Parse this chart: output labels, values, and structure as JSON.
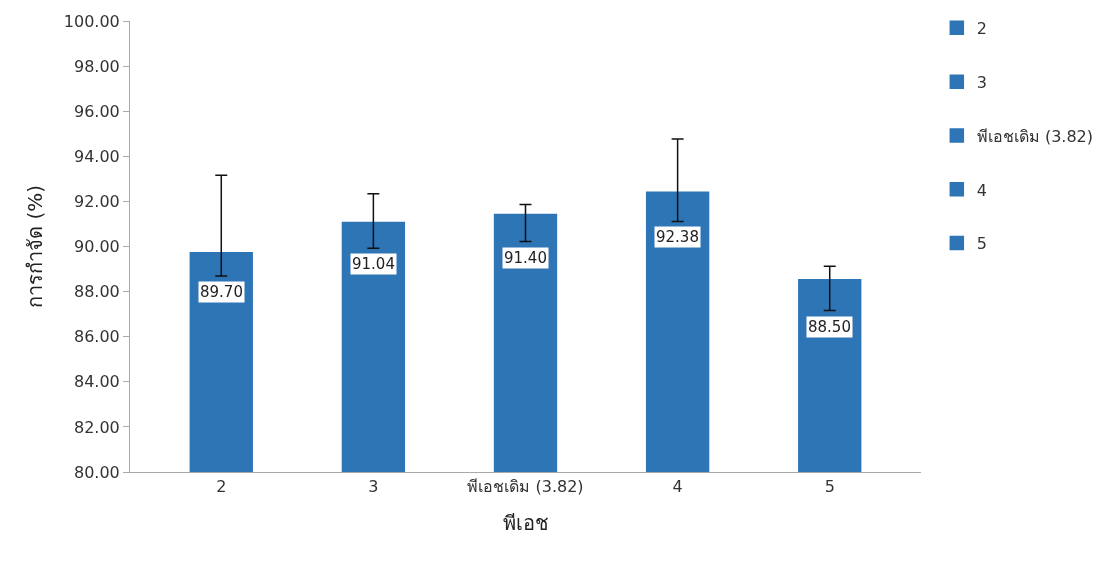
{
  "chart_data": {
    "type": "bar",
    "xlabel": "พีเอช",
    "ylabel": "การกำจัด (%)",
    "categories": [
      "2",
      "3",
      "พีเอชเดิม (3.82)",
      "4",
      "5"
    ],
    "series": [
      {
        "name": "2",
        "color": "#2e75b6",
        "values": [
          89.7,
          null,
          null,
          null,
          null
        ],
        "errors": [
          [
            88.69,
            93.16
          ],
          null,
          null,
          null,
          null
        ],
        "value_labels": [
          "89.70",
          null,
          null,
          null,
          null
        ]
      },
      {
        "name": "3",
        "color": "#2e75b6",
        "values": [
          null,
          91.04,
          null,
          null,
          null
        ],
        "errors": [
          null,
          [
            89.92,
            92.34
          ],
          null,
          null,
          null
        ],
        "value_labels": [
          null,
          "91.04",
          null,
          null,
          null
        ]
      },
      {
        "name": "พีเอชเดิม (3.82)",
        "color": "#2e75b6",
        "values": [
          null,
          null,
          91.4,
          null,
          null
        ],
        "errors": [
          null,
          null,
          [
            90.22,
            91.86
          ],
          null,
          null
        ],
        "value_labels": [
          null,
          null,
          "91.40",
          null,
          null
        ]
      },
      {
        "name": "4",
        "color": "#2e75b6",
        "values": [
          null,
          null,
          null,
          92.38,
          null
        ],
        "errors": [
          null,
          null,
          null,
          [
            91.11,
            94.77
          ],
          null
        ],
        "value_labels": [
          null,
          null,
          null,
          "92.38",
          null
        ]
      },
      {
        "name": "5",
        "color": "#2e75b6",
        "values": [
          null,
          null,
          null,
          null,
          88.5
        ],
        "errors": [
          null,
          null,
          null,
          null,
          [
            87.16,
            89.12
          ]
        ],
        "value_labels": [
          null,
          null,
          null,
          null,
          "88.50"
        ]
      }
    ],
    "ylim": [
      80,
      100
    ],
    "yticks": [
      {
        "value": 80,
        "label": "80.00"
      },
      {
        "value": 82,
        "label": "82.00"
      },
      {
        "value": 84,
        "label": "84.00"
      },
      {
        "value": 86,
        "label": "86.00"
      },
      {
        "value": 88,
        "label": "88.00"
      },
      {
        "value": 90,
        "label": "90.00"
      },
      {
        "value": 92,
        "label": "92.00"
      },
      {
        "value": 94,
        "label": "94.00"
      },
      {
        "value": 96,
        "label": "96.00"
      },
      {
        "value": 98,
        "label": "98.00"
      },
      {
        "value": 100,
        "label": "100.00"
      }
    ],
    "grid": false,
    "legend": "right"
  }
}
